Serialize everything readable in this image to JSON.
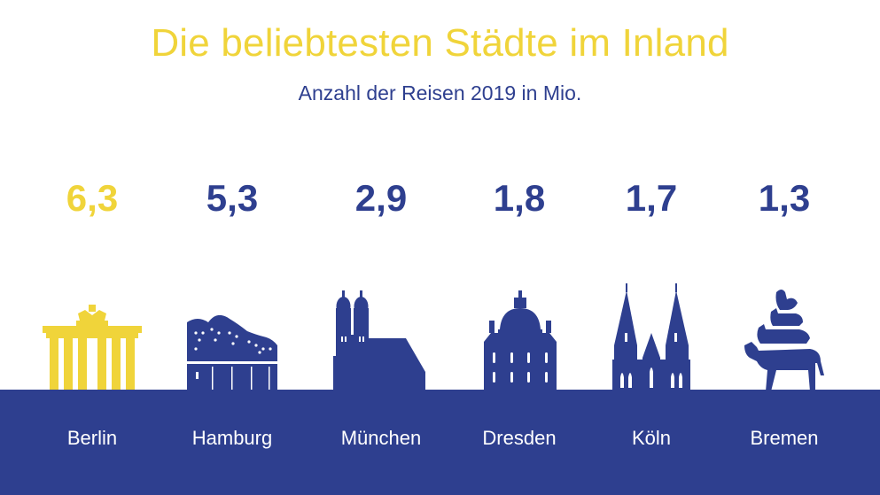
{
  "title": "Die beliebtesten Städte im Inland",
  "subtitle": "Anzahl der Reisen 2019 in Mio.",
  "colors": {
    "highlight": "#F0D43A",
    "primary": "#2E3F8F",
    "text_on_ground": "#FFFFFF"
  },
  "chart_data": {
    "type": "bar",
    "title": "Die beliebtesten Städte im Inland",
    "subtitle": "Anzahl der Reisen 2019 in Mio.",
    "categories": [
      "Berlin",
      "Hamburg",
      "München",
      "Dresden",
      "Köln",
      "Bremen"
    ],
    "values": [
      6.3,
      5.3,
      2.9,
      1.8,
      1.7,
      1.3
    ],
    "value_labels": [
      "6,3",
      "5,3",
      "2,9",
      "1,8",
      "1,7",
      "1,3"
    ],
    "highlighted": "Berlin"
  },
  "cities": [
    {
      "name": "Berlin",
      "value_label": "6,3",
      "icon": "brandenburg-gate-icon"
    },
    {
      "name": "Hamburg",
      "value_label": "5,3",
      "icon": "elbphilharmonie-icon"
    },
    {
      "name": "München",
      "value_label": "2,9",
      "icon": "frauenkirche-icon"
    },
    {
      "name": "Dresden",
      "value_label": "1,8",
      "icon": "frauenkirche-dresden-icon"
    },
    {
      "name": "Köln",
      "value_label": "1,7",
      "icon": "cologne-cathedral-icon"
    },
    {
      "name": "Bremen",
      "value_label": "1,3",
      "icon": "town-musicians-icon"
    }
  ]
}
